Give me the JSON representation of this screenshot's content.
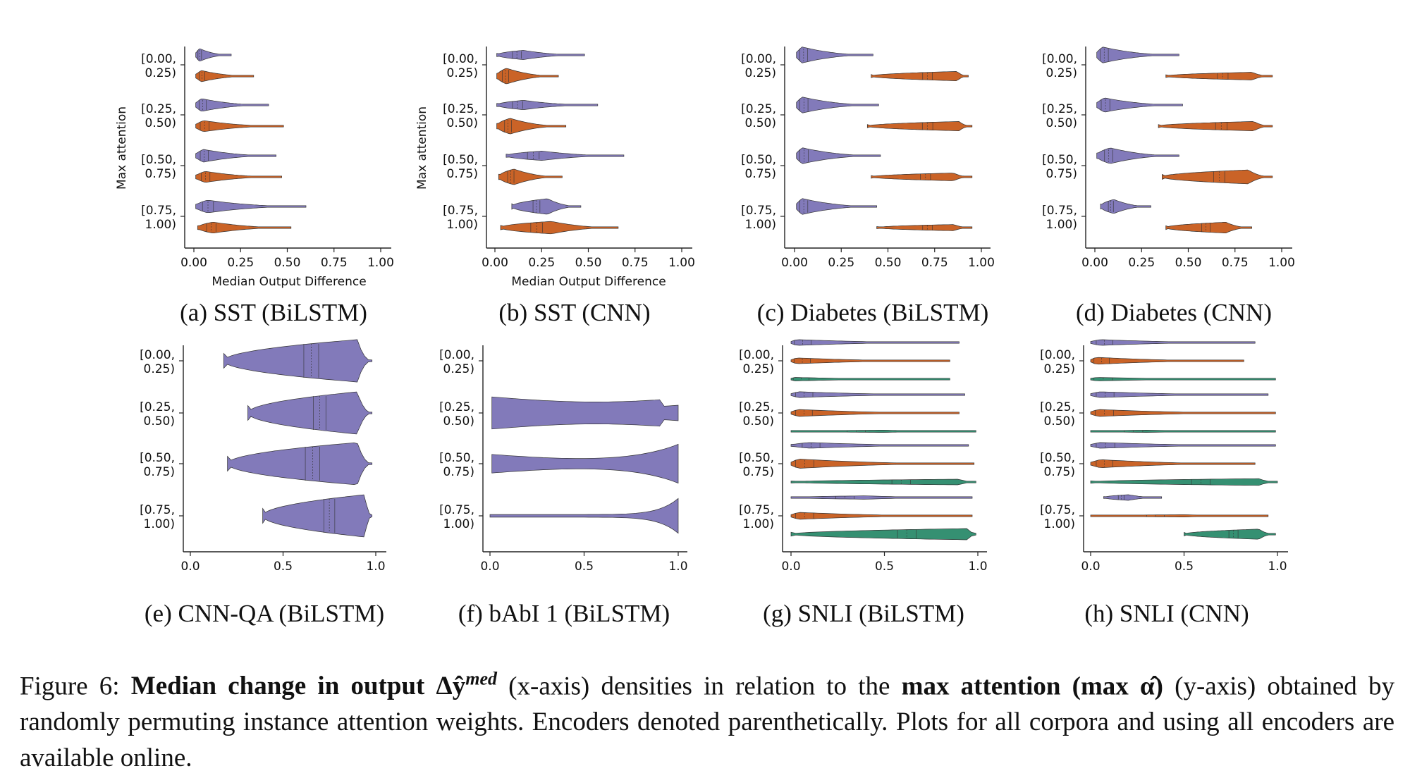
{
  "colors": {
    "BiLSTM": "#7b73b6",
    "CNN": "#c75b1b",
    "third": "#2a8a6a"
  },
  "y_axis_label": "Max attention",
  "x_axis_label": "Median Output Difference",
  "row_labels": [
    [
      "[0.00,",
      "0.25)"
    ],
    [
      "[0.25,",
      "0.50)"
    ],
    [
      "[0.50,",
      "0.75)"
    ],
    [
      "[0.75,",
      "1.00)"
    ]
  ],
  "caption": {
    "prefix": "Figure 6: ",
    "bold1": "Median change in output Δŷ",
    "sup": "med",
    "mid1": " (x-axis) densities in relation to the ",
    "bold2": "max attention (max α̂)",
    "rest": " (y-axis) obtained by randomly permuting instance attention weights. Encoders denoted parenthetically. Plots for all corpora and using all encoders are available online."
  },
  "chart_data": [
    {
      "type": "violin",
      "subcaption": "(a) SST (BiLSTM)",
      "xlim": [
        0,
        1
      ],
      "xticks": [
        "0.00",
        "0.25",
        "0.50",
        "0.75",
        "1.00"
      ],
      "ylabel": "Max attention",
      "xlabel": "Median Output Difference",
      "categories": [
        "[0.00, 0.25)",
        "[0.25, 0.50)",
        "[0.50, 0.75)",
        "[0.75, 1.00)"
      ],
      "groups": [
        [
          {
            "color": "BiLSTM",
            "min": 0.01,
            "mode": 0.03,
            "max": 0.2,
            "w": 0.8
          },
          {
            "color": "CNN",
            "min": 0.01,
            "mode": 0.04,
            "max": 0.32,
            "w": 0.7
          }
        ],
        [
          {
            "color": "BiLSTM",
            "min": 0.01,
            "mode": 0.04,
            "max": 0.4,
            "w": 0.8
          },
          {
            "color": "CNN",
            "min": 0.01,
            "mode": 0.05,
            "max": 0.48,
            "w": 0.7
          }
        ],
        [
          {
            "color": "BiLSTM",
            "min": 0.01,
            "mode": 0.05,
            "max": 0.44,
            "w": 0.8
          },
          {
            "color": "CNN",
            "min": 0.01,
            "mode": 0.06,
            "max": 0.47,
            "w": 0.7
          }
        ],
        [
          {
            "color": "BiLSTM",
            "min": 0.01,
            "mode": 0.07,
            "max": 0.6,
            "w": 0.8
          },
          {
            "color": "CNN",
            "min": 0.02,
            "mode": 0.1,
            "max": 0.52,
            "w": 0.7
          }
        ]
      ]
    },
    {
      "type": "violin",
      "subcaption": "(b) SST (CNN)",
      "xlim": [
        0,
        1
      ],
      "xticks": [
        "0.00",
        "0.25",
        "0.50",
        "0.75",
        "1.00"
      ],
      "ylabel": "Max attention",
      "xlabel": "Median Output Difference",
      "categories": [
        "[0.00, 0.25)",
        "[0.25, 0.50)",
        "[0.50, 0.75)",
        "[0.75, 1.00)"
      ],
      "groups": [
        [
          {
            "color": "BiLSTM",
            "min": 0.01,
            "mode": 0.15,
            "max": 0.48,
            "w": 0.6
          },
          {
            "color": "CNN",
            "min": 0.01,
            "mode": 0.06,
            "max": 0.34,
            "w": 1.0
          }
        ],
        [
          {
            "color": "BiLSTM",
            "min": 0.01,
            "mode": 0.15,
            "max": 0.55,
            "w": 0.6
          },
          {
            "color": "CNN",
            "min": 0.01,
            "mode": 0.08,
            "max": 0.38,
            "w": 1.0
          }
        ],
        [
          {
            "color": "BiLSTM",
            "min": 0.06,
            "mode": 0.25,
            "max": 0.69,
            "w": 0.6
          },
          {
            "color": "CNN",
            "min": 0.02,
            "mode": 0.1,
            "max": 0.36,
            "w": 1.0
          }
        ],
        [
          {
            "color": "BiLSTM",
            "min": 0.09,
            "mode": 0.28,
            "max": 0.46,
            "w": 1.0
          },
          {
            "color": "CNN",
            "min": 0.03,
            "mode": 0.3,
            "max": 0.66,
            "w": 0.8
          }
        ]
      ]
    },
    {
      "type": "violin",
      "subcaption": "(c) Diabetes (BiLSTM)",
      "xlim": [
        0,
        1
      ],
      "xticks": [
        "0.00",
        "0.25",
        "0.50",
        "0.75",
        "1.00"
      ],
      "categories": [
        "[0.00, 0.25)",
        "[0.25, 0.50)",
        "[0.50, 0.75)",
        "[0.75, 1.00)"
      ],
      "groups": [
        [
          {
            "color": "BiLSTM",
            "min": 0.01,
            "mode": 0.04,
            "max": 0.42,
            "w": 1.0
          },
          {
            "color": "CNN",
            "min": 0.41,
            "mode": 0.87,
            "max": 0.93,
            "w": 0.6
          }
        ],
        [
          {
            "color": "BiLSTM",
            "min": 0.01,
            "mode": 0.04,
            "max": 0.45,
            "w": 1.0
          },
          {
            "color": "CNN",
            "min": 0.39,
            "mode": 0.88,
            "max": 0.95,
            "w": 0.6
          }
        ],
        [
          {
            "color": "BiLSTM",
            "min": 0.01,
            "mode": 0.04,
            "max": 0.46,
            "w": 1.0
          },
          {
            "color": "CNN",
            "min": 0.41,
            "mode": 0.85,
            "max": 0.95,
            "w": 0.5
          }
        ],
        [
          {
            "color": "BiLSTM",
            "min": 0.01,
            "mode": 0.04,
            "max": 0.44,
            "w": 1.0
          },
          {
            "color": "CNN",
            "min": 0.44,
            "mode": 0.85,
            "max": 0.95,
            "w": 0.4
          }
        ]
      ]
    },
    {
      "type": "violin",
      "subcaption": "(d) Diabetes (CNN)",
      "xlim": [
        0,
        1
      ],
      "xticks": [
        "0.00",
        "0.25",
        "0.50",
        "0.75",
        "1.00"
      ],
      "categories": [
        "[0.00, 0.25)",
        "[0.25, 0.50)",
        "[0.50, 0.75)",
        "[0.75, 1.00)"
      ],
      "groups": [
        [
          {
            "color": "BiLSTM",
            "min": 0.01,
            "mode": 0.04,
            "max": 0.45,
            "w": 1.0
          },
          {
            "color": "CNN",
            "min": 0.38,
            "mode": 0.84,
            "max": 0.95,
            "w": 0.5
          }
        ],
        [
          {
            "color": "BiLSTM",
            "min": 0.01,
            "mode": 0.05,
            "max": 0.47,
            "w": 0.9
          },
          {
            "color": "CNN",
            "min": 0.34,
            "mode": 0.85,
            "max": 0.95,
            "w": 0.6
          }
        ],
        [
          {
            "color": "BiLSTM",
            "min": 0.01,
            "mode": 0.08,
            "max": 0.45,
            "w": 1.0
          },
          {
            "color": "CNN",
            "min": 0.36,
            "mode": 0.82,
            "max": 0.95,
            "w": 0.9
          }
        ],
        [
          {
            "color": "BiLSTM",
            "min": 0.03,
            "mode": 0.1,
            "max": 0.3,
            "w": 0.9
          },
          {
            "color": "CNN",
            "min": 0.38,
            "mode": 0.7,
            "max": 0.84,
            "w": 0.7
          }
        ]
      ]
    },
    {
      "type": "violin",
      "subcaption": "(e) CNN-QA (BiLSTM)",
      "xlim": [
        0,
        1
      ],
      "xticks": [
        "0.0",
        "0.5",
        "1.0"
      ],
      "categories": [
        "[0.00, 0.25)",
        "[0.25, 0.50)",
        "[0.50, 0.75)",
        "[0.75, 1.00)"
      ],
      "groups": [
        [
          {
            "color": "BiLSTM",
            "min": 0.18,
            "mode": 0.9,
            "max": 0.98,
            "w": 1.0
          }
        ],
        [
          {
            "color": "BiLSTM",
            "min": 0.31,
            "mode": 0.9,
            "max": 0.98,
            "w": 1.0
          }
        ],
        [
          {
            "color": "BiLSTM",
            "min": 0.2,
            "mode": 0.9,
            "max": 0.98,
            "w": 1.0
          }
        ],
        [
          {
            "color": "BiLSTM",
            "min": 0.39,
            "mode": 0.94,
            "max": 0.98,
            "w": 1.0
          }
        ]
      ]
    },
    {
      "type": "violin",
      "subcaption": "(f) bAbI 1 (BiLSTM)",
      "xlim": [
        0,
        1
      ],
      "xticks": [
        "0.0",
        "0.5",
        "1.0"
      ],
      "categories": [
        "[0.00, 0.25)",
        "[0.25, 0.50)",
        "[0.50, 0.75)",
        "[0.75, 1.00)"
      ],
      "groups": [
        [],
        [
          {
            "color": "BiLSTM",
            "shape": "babi1",
            "min": 0.01,
            "max": 1.0,
            "w": 1.0
          }
        ],
        [
          {
            "color": "BiLSTM",
            "shape": "babi2",
            "min": 0.01,
            "max": 1.0,
            "w": 1.0
          }
        ],
        [
          {
            "color": "BiLSTM",
            "shape": "babi3",
            "min": 0.0,
            "max": 1.0,
            "w": 1.0
          }
        ]
      ]
    },
    {
      "type": "violin",
      "subcaption": "(g) SNLI (BiLSTM)",
      "xlim": [
        0,
        1
      ],
      "xticks": [
        "0.0",
        "0.5",
        "1.0"
      ],
      "categories": [
        "[0.00, 0.25)",
        "[0.25, 0.50)",
        "[0.50, 0.75)",
        "[0.75, 1.00)"
      ],
      "groups": [
        [
          {
            "color": "BiLSTM",
            "min": 0.0,
            "mode": 0.03,
            "max": 0.9,
            "w": 0.5
          },
          {
            "color": "CNN",
            "min": 0.0,
            "mode": 0.03,
            "max": 0.85,
            "w": 0.5
          },
          {
            "color": "third",
            "min": 0.0,
            "mode": 0.02,
            "max": 0.85,
            "w": 0.3
          }
        ],
        [
          {
            "color": "BiLSTM",
            "min": 0.0,
            "mode": 0.04,
            "max": 0.93,
            "w": 0.5
          },
          {
            "color": "CNN",
            "min": 0.0,
            "mode": 0.04,
            "max": 0.9,
            "w": 0.6
          },
          {
            "color": "third",
            "min": 0.0,
            "mode": 0.5,
            "max": 0.99,
            "w": 0.2
          }
        ],
        [
          {
            "color": "BiLSTM",
            "min": 0.0,
            "mode": 0.1,
            "max": 0.95,
            "w": 0.5
          },
          {
            "color": "CNN",
            "min": 0.0,
            "mode": 0.04,
            "max": 0.98,
            "w": 0.8
          },
          {
            "color": "third",
            "min": 0.0,
            "mode": 0.9,
            "max": 0.99,
            "w": 0.5
          }
        ],
        [
          {
            "color": "BiLSTM",
            "min": 0.0,
            "mode": 0.4,
            "max": 0.97,
            "w": 0.3
          },
          {
            "color": "CNN",
            "min": 0.0,
            "mode": 0.04,
            "max": 0.97,
            "w": 0.6
          },
          {
            "color": "third",
            "min": 0.0,
            "mode": 0.95,
            "max": 0.99,
            "w": 1.0
          }
        ]
      ]
    },
    {
      "type": "violin",
      "subcaption": "(h) SNLI (CNN)",
      "xlim": [
        0,
        1
      ],
      "xticks": [
        "0.0",
        "0.5",
        "1.0"
      ],
      "categories": [
        "[0.00, 0.25)",
        "[0.25, 0.50)",
        "[0.50, 0.75)",
        "[0.75, 1.00)"
      ],
      "groups": [
        [
          {
            "color": "BiLSTM",
            "min": 0.0,
            "mode": 0.05,
            "max": 0.88,
            "w": 0.5
          },
          {
            "color": "CNN",
            "min": 0.0,
            "mode": 0.03,
            "max": 0.82,
            "w": 0.6
          },
          {
            "color": "third",
            "min": 0.0,
            "mode": 0.03,
            "max": 0.99,
            "w": 0.3
          }
        ],
        [
          {
            "color": "BiLSTM",
            "min": 0.0,
            "mode": 0.05,
            "max": 0.95,
            "w": 0.5
          },
          {
            "color": "CNN",
            "min": 0.0,
            "mode": 0.04,
            "max": 0.99,
            "w": 0.6
          },
          {
            "color": "third",
            "min": 0.0,
            "mode": 0.3,
            "max": 0.99,
            "w": 0.2
          }
        ],
        [
          {
            "color": "BiLSTM",
            "min": 0.0,
            "mode": 0.05,
            "max": 0.99,
            "w": 0.5
          },
          {
            "color": "CNN",
            "min": 0.0,
            "mode": 0.05,
            "max": 0.88,
            "w": 0.7
          },
          {
            "color": "third",
            "min": 0.0,
            "mode": 0.9,
            "max": 1.0,
            "w": 0.6
          }
        ],
        [
          {
            "color": "BiLSTM",
            "min": 0.07,
            "mode": 0.2,
            "max": 0.38,
            "w": 0.5
          },
          {
            "color": "CNN",
            "min": 0.0,
            "mode": 0.5,
            "max": 0.95,
            "w": 0.2
          },
          {
            "color": "third",
            "min": 0.5,
            "mode": 0.9,
            "max": 0.99,
            "w": 0.9
          }
        ]
      ]
    }
  ]
}
